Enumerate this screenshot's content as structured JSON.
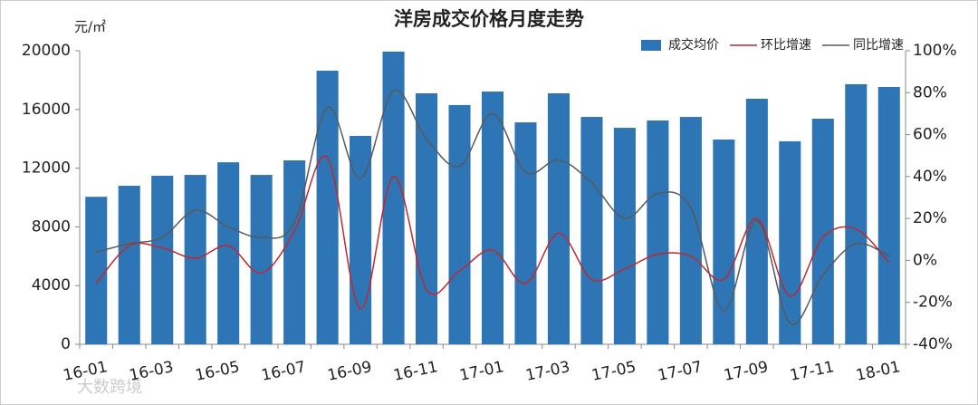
{
  "chart_data": {
    "type": "bar_line",
    "title": "洋房成交价格月度走势",
    "y_unit": "元/㎡",
    "watermark": "大数跨境",
    "categories": [
      "16-01",
      null,
      "16-03",
      null,
      "16-05",
      null,
      "16-07",
      null,
      "16-09",
      null,
      "16-11",
      null,
      "17-01",
      null,
      "17-03",
      null,
      "17-05",
      null,
      "17-07",
      null,
      "17-09",
      null,
      "17-11",
      null,
      "18-01"
    ],
    "series": [
      {
        "name": "成交均价",
        "color": "#2e75b6",
        "type": "bar",
        "values": [
          10050,
          10800,
          11480,
          11540,
          12400,
          11540,
          12530,
          18640,
          14200,
          19940,
          17100,
          16300,
          17220,
          15120,
          17100,
          15490,
          14750,
          15250,
          15490,
          13950,
          16730,
          13830,
          15370,
          17720,
          17530
        ]
      },
      {
        "name": "环比增速",
        "color": "#c0282d",
        "type": "line",
        "axis": "y2",
        "values": [
          -11,
          7,
          6,
          1,
          7,
          -6,
          14,
          49,
          -23,
          40,
          -14,
          -5,
          5,
          -11,
          13,
          -9,
          -4,
          3,
          2,
          -9,
          20,
          -17,
          11,
          15,
          -1
        ]
      },
      {
        "name": "同比增速",
        "color": "#595959",
        "type": "line",
        "axis": "y2",
        "values": [
          4,
          8,
          11,
          24,
          16,
          11,
          18,
          73,
          39,
          81,
          58,
          45,
          70,
          42,
          48,
          37,
          20,
          32,
          25,
          -24,
          19,
          -30,
          -7,
          8,
          2
        ]
      }
    ],
    "ylim": [
      0,
      20000
    ],
    "yticks": [
      0,
      4000,
      8000,
      12000,
      16000,
      20000
    ],
    "y2lim": [
      -40,
      100
    ],
    "y2ticks": [
      {
        "value": -40,
        "label": "-40%"
      },
      {
        "value": -20,
        "label": "-20%"
      },
      {
        "value": 0,
        "label": "0%"
      },
      {
        "value": 20,
        "label": "20%"
      },
      {
        "value": 40,
        "label": "40%"
      },
      {
        "value": 60,
        "label": "60%"
      },
      {
        "value": 80,
        "label": "80%"
      },
      {
        "value": 100,
        "label": "100%"
      }
    ],
    "legend": "top-right",
    "grid": false
  }
}
